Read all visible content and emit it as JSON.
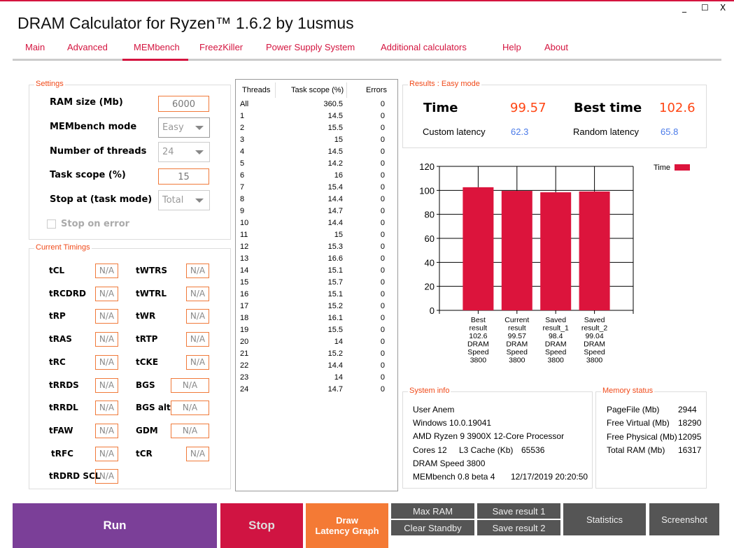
{
  "window": {
    "title": "DRAM Calculator for Ryzen™ 1.6.2 by 1usmus",
    "minimize": "_",
    "maximize": "☐",
    "close": "X"
  },
  "tabs": [
    {
      "label": "Main"
    },
    {
      "label": "Advanced"
    },
    {
      "label": "MEMbench"
    },
    {
      "label": "FreezKiller"
    },
    {
      "label": "Power Supply System"
    },
    {
      "label": "Additional calculators"
    },
    {
      "label": "Help"
    },
    {
      "label": "About"
    }
  ],
  "active_tab": "MEMbench",
  "settings": {
    "title": "Settings",
    "ram_size_label": "RAM size (Mb)",
    "ram_size": "6000",
    "mode_label": "MEMbench mode",
    "mode": "Easy",
    "threads_label": "Number of threads",
    "threads": "24",
    "scope_label": "Task scope (%)",
    "scope": "15",
    "stop_label": "Stop at (task mode)",
    "stop": "Total",
    "stop_on_error": "Stop on error"
  },
  "timings": {
    "title": "Current Timings",
    "left": [
      {
        "name": "tCL",
        "value": "N/A"
      },
      {
        "name": "tRCDRD",
        "value": "N/A"
      },
      {
        "name": "tRP",
        "value": "N/A"
      },
      {
        "name": "tRAS",
        "value": "N/A"
      },
      {
        "name": "tRC",
        "value": "N/A"
      },
      {
        "name": "tRRDS",
        "value": "N/A"
      },
      {
        "name": "tRRDL",
        "value": "N/A"
      },
      {
        "name": "tFAW",
        "value": "N/A"
      },
      {
        "name": "tRFC",
        "value": "N/A"
      },
      {
        "name": "tRDRD SCL",
        "value": "N/A"
      }
    ],
    "right": [
      {
        "name": "tWTRS",
        "value": "N/A"
      },
      {
        "name": "tWTRL",
        "value": "N/A"
      },
      {
        "name": "tWR",
        "value": "N/A"
      },
      {
        "name": "tRTP",
        "value": "N/A"
      },
      {
        "name": "tCKE",
        "value": "N/A"
      },
      {
        "name": "BGS",
        "value": "N/A"
      },
      {
        "name": "BGS alt",
        "value": "N/A"
      },
      {
        "name": "GDM",
        "value": "N/A"
      },
      {
        "name": "tCR",
        "value": "N/A"
      }
    ]
  },
  "threads_table": {
    "headers": [
      "Threads",
      "Task scope (%)",
      "Errors"
    ],
    "rows": [
      [
        "All",
        "360.5",
        "0"
      ],
      [
        "1",
        "14.5",
        "0"
      ],
      [
        "2",
        "15.5",
        "0"
      ],
      [
        "3",
        "15",
        "0"
      ],
      [
        "4",
        "14.5",
        "0"
      ],
      [
        "5",
        "14.2",
        "0"
      ],
      [
        "6",
        "16",
        "0"
      ],
      [
        "7",
        "15.4",
        "0"
      ],
      [
        "8",
        "14.4",
        "0"
      ],
      [
        "9",
        "14.7",
        "0"
      ],
      [
        "10",
        "14.4",
        "0"
      ],
      [
        "11",
        "15",
        "0"
      ],
      [
        "12",
        "15.3",
        "0"
      ],
      [
        "13",
        "16.6",
        "0"
      ],
      [
        "14",
        "15.1",
        "0"
      ],
      [
        "15",
        "15.7",
        "0"
      ],
      [
        "16",
        "15.1",
        "0"
      ],
      [
        "17",
        "15.2",
        "0"
      ],
      [
        "18",
        "16.1",
        "0"
      ],
      [
        "19",
        "15.5",
        "0"
      ],
      [
        "20",
        "14",
        "0"
      ],
      [
        "21",
        "15.2",
        "0"
      ],
      [
        "22",
        "14.4",
        "0"
      ],
      [
        "23",
        "14",
        "0"
      ],
      [
        "24",
        "14.7",
        "0"
      ]
    ]
  },
  "results": {
    "title": "Results : Easy mode",
    "time_label": "Time",
    "time": "99.57",
    "best_label": "Best time",
    "best": "102.6",
    "custom_label": "Custom latency",
    "custom": "62.3",
    "random_label": "Random latency",
    "random": "65.8"
  },
  "chart_data": {
    "type": "bar",
    "title": "",
    "xlabel": "",
    "ylabel": "",
    "ylim": [
      0,
      120
    ],
    "yticks": [
      0,
      20,
      40,
      60,
      80,
      100,
      120
    ],
    "grid": true,
    "legend": {
      "label": "Time",
      "placement": "top-right",
      "color": "#dc143c"
    },
    "categories": [
      [
        "Best",
        "result",
        "102.6",
        "DRAM",
        "Speed",
        "3800"
      ],
      [
        "Current",
        "result",
        "99.57",
        "DRAM",
        "Speed",
        "3800"
      ],
      [
        "Saved",
        "result_1",
        "98.4",
        "DRAM",
        "Speed",
        "3800"
      ],
      [
        "Saved",
        "result_2",
        "99.04",
        "DRAM",
        "Speed",
        "3800"
      ]
    ],
    "series": [
      {
        "name": "Time",
        "values": [
          102.6,
          99.57,
          98.4,
          99.04
        ]
      }
    ]
  },
  "sysinfo": {
    "title": "System info",
    "user": "User Anem",
    "os": "Windows 10.0.19041",
    "cpu": "AMD Ryzen 9 3900X 12-Core Processor",
    "cores": "Cores 12",
    "l3_label": "L3 Cache (Kb)",
    "l3": "65536",
    "dram": "DRAM Speed 3800",
    "version": "MEMbench 0.8 beta 4",
    "datetime": "12/17/2019 20:20:50"
  },
  "memory": {
    "title": "Memory status",
    "rows": [
      [
        "PageFile (Mb)",
        "2944"
      ],
      [
        "Free Virtual (Mb)",
        "18290"
      ],
      [
        "Free Physical (Mb)",
        "12095"
      ],
      [
        "Total RAM (Mb)",
        "16317"
      ]
    ]
  },
  "buttons": {
    "run": "Run",
    "stop": "Stop",
    "draw1": "Draw",
    "draw2": "Latency Graph",
    "max_ram": "Max RAM",
    "clear_standby": "Clear Standby",
    "save1": "Save result 1",
    "save2": "Save result 2",
    "statistics": "Statistics",
    "screenshot": "Screenshot"
  },
  "colors": {
    "accent": "#d4143f",
    "run": "#7b3f98",
    "stop": "#d01442",
    "draw": "#f47a35",
    "gray": "#555555",
    "bar": "#dc143c"
  }
}
